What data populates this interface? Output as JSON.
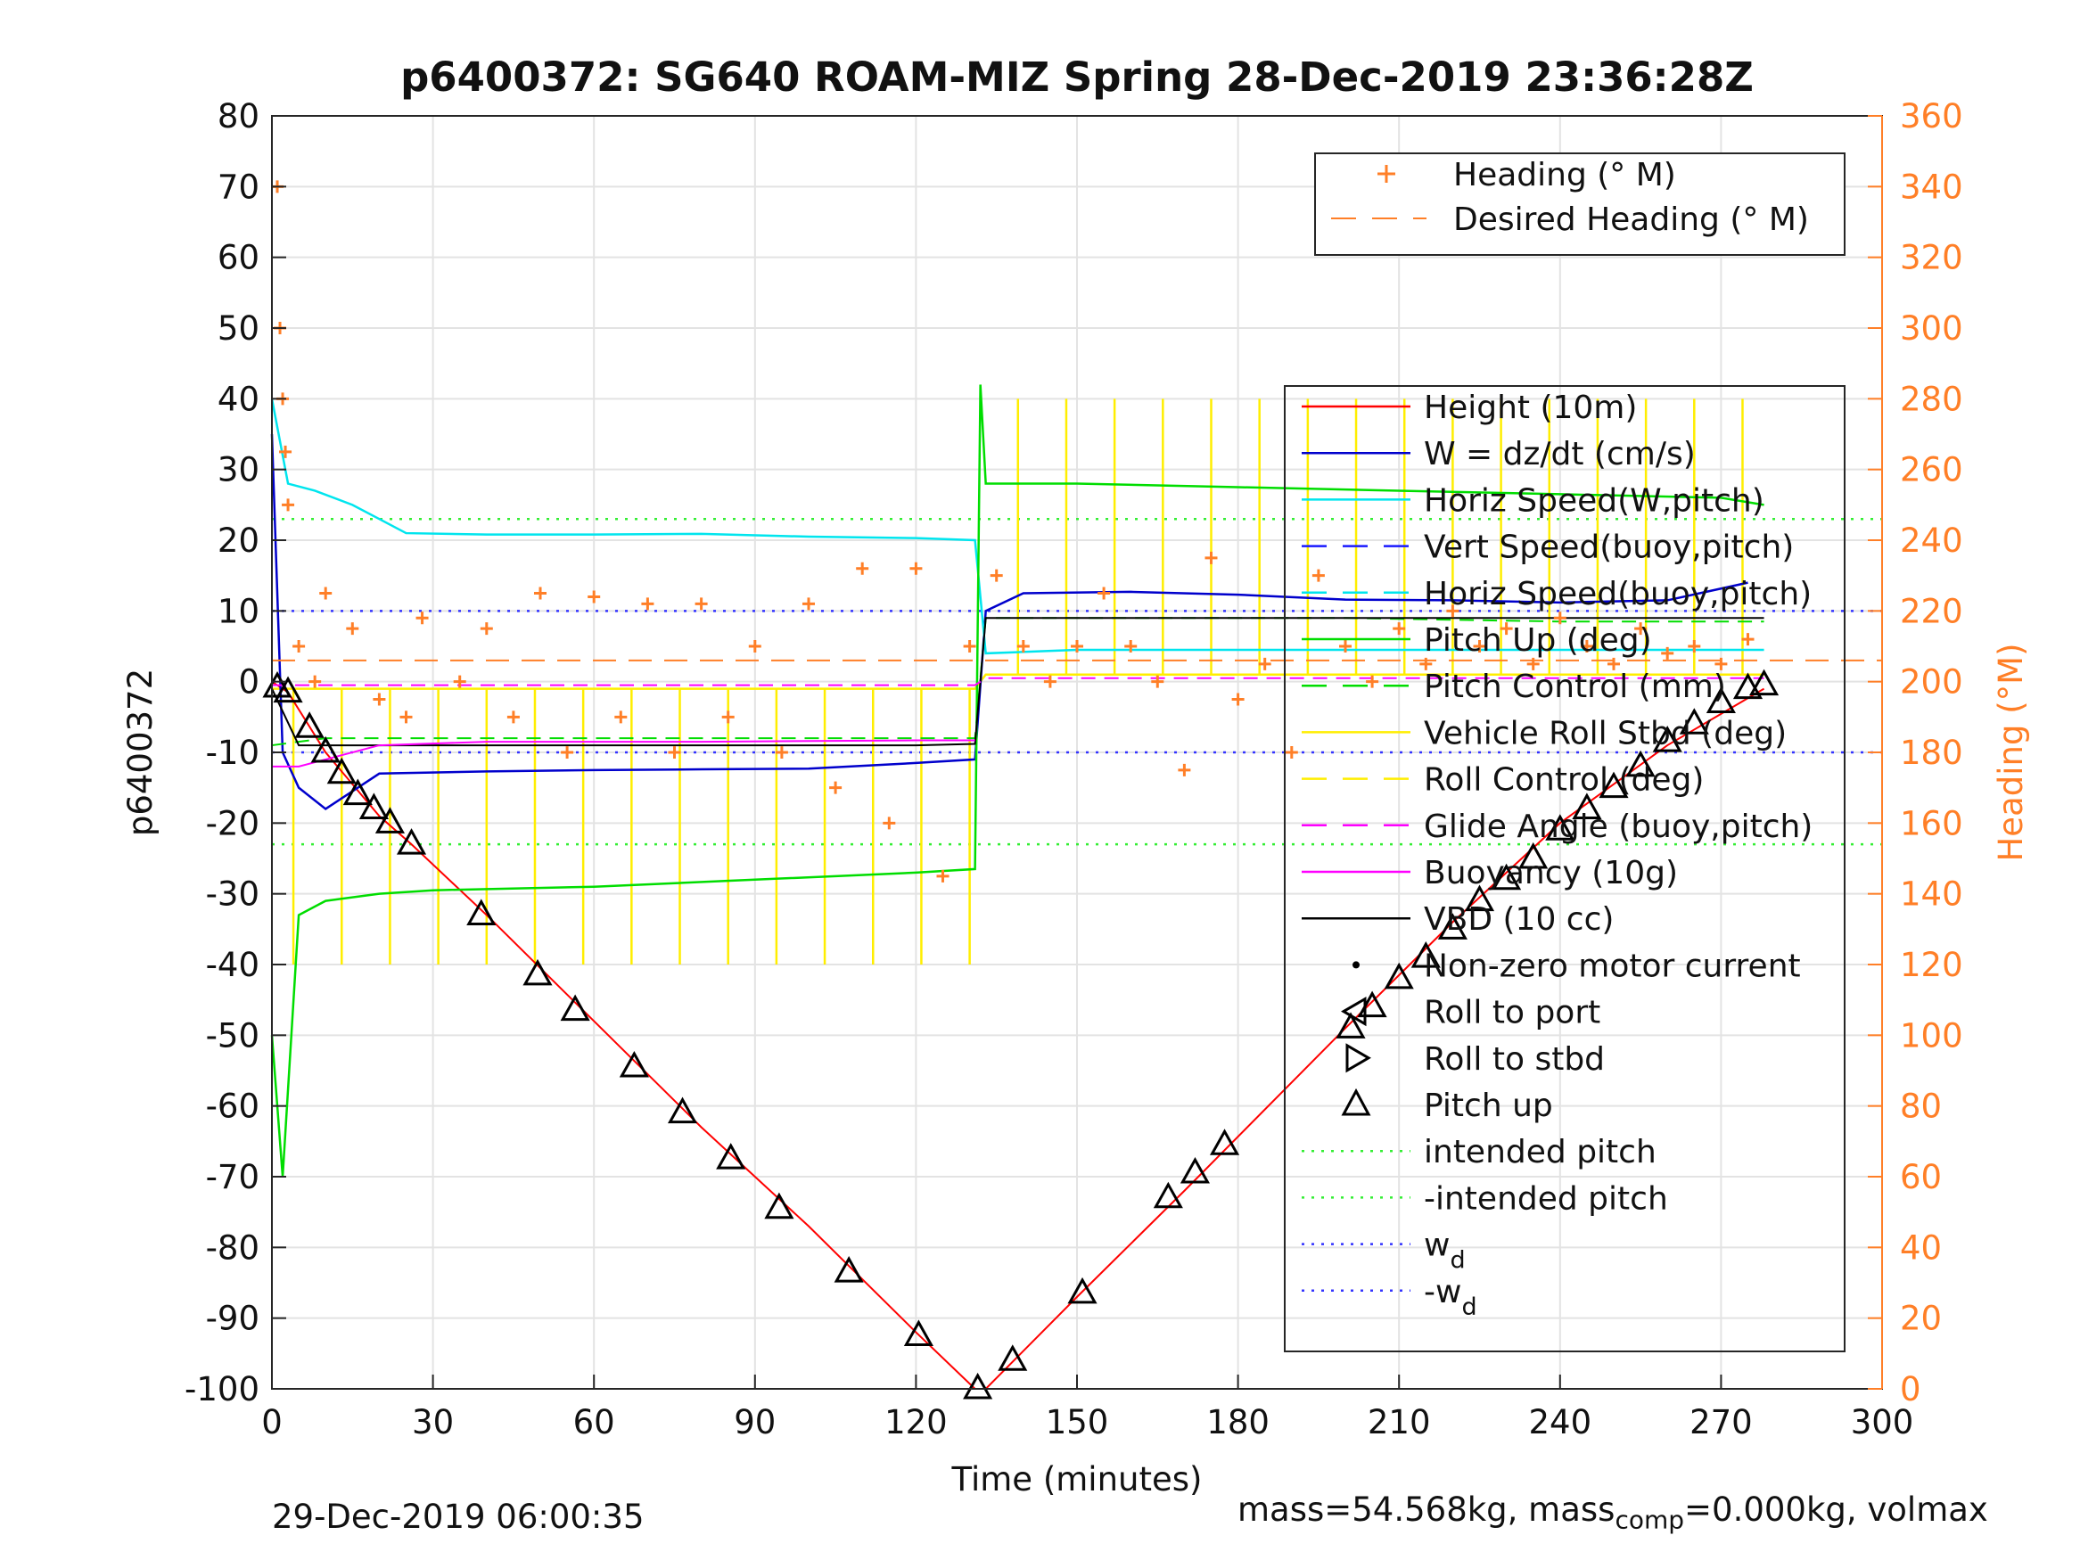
{
  "chart_data": {
    "type": "line",
    "title": "p6400372: SG640 ROAM-MIZ Spring 28-Dec-2019 23:36:28Z",
    "xlabel": "Time (minutes)",
    "ylabel": "p6400372",
    "y2label": "Heading (°M)",
    "xlim": [
      0,
      300
    ],
    "ylim": [
      -100,
      80
    ],
    "y2lim": [
      0,
      360
    ],
    "xticks": [
      0,
      30,
      60,
      90,
      120,
      150,
      180,
      210,
      240,
      270,
      300
    ],
    "yticks": [
      80,
      70,
      60,
      50,
      40,
      30,
      20,
      10,
      0,
      -10,
      -20,
      -30,
      -40,
      -50,
      -60,
      -70,
      -80,
      -90,
      -100
    ],
    "y2ticks": [
      360,
      340,
      320,
      300,
      280,
      260,
      240,
      220,
      200,
      180,
      160,
      140,
      120,
      100,
      80,
      60,
      40,
      20,
      0
    ],
    "grid": true,
    "colors": {
      "height": "#ff0000",
      "w": "#0000cc",
      "horiz_speed": "#00e5ee",
      "vert_speed": "#1a1aff",
      "horiz_speed_buoy": "#00e5ee",
      "pitch": "#00dd00",
      "pitch_control": "#00dd00",
      "roll": "#ffee00",
      "roll_control": "#ffee00",
      "glide": "#ff00ff",
      "buoyancy": "#ff00ff",
      "vbd": "#000000",
      "heading": "#ff7f27",
      "intended": "#33ee33",
      "wd": "#3333ff",
      "right_axis": "#ff7f27"
    },
    "legend_heading": [
      {
        "label": "Heading (° M)",
        "style": "plus",
        "color": "#ff7f27"
      },
      {
        "label": "Desired Heading (° M)",
        "style": "dash",
        "color": "#ff7f27"
      }
    ],
    "legend_main": [
      {
        "label": "Height (10m)",
        "style": "line",
        "color": "#ff0000"
      },
      {
        "label": "W = dz/dt (cm/s)",
        "style": "line",
        "color": "#0000cc"
      },
      {
        "label": "Horiz Speed(W,pitch)",
        "style": "line",
        "color": "#00e5ee"
      },
      {
        "label": "Vert Speed(buoy,pitch)",
        "style": "dash",
        "color": "#1a1aff"
      },
      {
        "label": "Horiz Speed(buoy,pitch)",
        "style": "dash",
        "color": "#00e5ee"
      },
      {
        "label": "Pitch Up (deg)",
        "style": "line",
        "color": "#00dd00"
      },
      {
        "label": "Pitch Control (mm)",
        "style": "dash",
        "color": "#00dd00"
      },
      {
        "label": "Vehicle Roll Stbd (deg)",
        "style": "line",
        "color": "#ffee00"
      },
      {
        "label": "Roll Control (deg)",
        "style": "dash",
        "color": "#ffee00"
      },
      {
        "label": "Glide Angle (buoy,pitch)",
        "style": "dash",
        "color": "#ff00ff"
      },
      {
        "label": "Buoyancy (10g)",
        "style": "line",
        "color": "#ff00ff"
      },
      {
        "label": "VBD (10 cc)",
        "style": "line",
        "color": "#000000"
      },
      {
        "label": "Non-zero motor current",
        "style": "dot",
        "color": "#000000"
      },
      {
        "label": "Roll to port",
        "style": "tri-left",
        "color": "#000000"
      },
      {
        "label": "Roll to stbd",
        "style": "tri-right",
        "color": "#000000"
      },
      {
        "label": "Pitch up",
        "style": "tri-up",
        "color": "#000000"
      },
      {
        "label": "intended pitch",
        "style": "dot-line",
        "color": "#33ee33"
      },
      {
        "label": "-intended pitch",
        "style": "dot-line",
        "color": "#33ee33"
      },
      {
        "label": "w",
        "sub": "d",
        "style": "dot-line",
        "color": "#3333ff"
      },
      {
        "label": "-w",
        "sub": "d",
        "style": "dot-line",
        "color": "#3333ff"
      }
    ],
    "series": [
      {
        "name": "Height (10m)",
        "x": [
          0,
          3,
          10,
          20,
          26,
          40,
          60,
          80,
          100,
          120,
          131,
          133,
          150,
          170,
          200,
          220,
          240,
          260,
          278
        ],
        "y": [
          0,
          -1.5,
          -10,
          -19,
          -23,
          -33,
          -48,
          -63,
          -77,
          -92,
          -100,
          -100,
          -87,
          -72,
          -49,
          -34,
          -20,
          -9,
          -1
        ]
      },
      {
        "name": "W = dz/dt (cm/s)",
        "x": [
          0,
          2,
          5,
          10,
          20,
          40,
          60,
          80,
          100,
          120,
          131,
          133,
          140,
          160,
          180,
          200,
          220,
          240,
          260,
          275
        ],
        "y": [
          35,
          -10,
          -15,
          -18,
          -13,
          -12.7,
          -12.5,
          -12.4,
          -12.3,
          -11.5,
          -11,
          10,
          12.5,
          12.7,
          12.3,
          11.6,
          11.5,
          11.2,
          11.5,
          14
        ]
      },
      {
        "name": "Horiz Speed(W,pitch)",
        "x": [
          0,
          3,
          8,
          15,
          20,
          25,
          40,
          60,
          80,
          100,
          120,
          131,
          133,
          150,
          170,
          200,
          240,
          278
        ],
        "y": [
          40,
          28,
          27,
          25,
          23,
          21,
          20.8,
          20.8,
          20.9,
          20.5,
          20.3,
          20,
          4,
          4.5,
          4.5,
          4.5,
          4.5,
          4.5
        ]
      },
      {
        "name": "Pitch Up (deg)",
        "x": [
          0,
          2,
          5,
          10,
          20,
          30,
          60,
          90,
          120,
          131,
          132,
          133,
          135,
          150,
          180,
          210,
          240,
          270,
          278
        ],
        "y": [
          -50,
          -70,
          -33,
          -31,
          -30,
          -29.5,
          -29,
          -28,
          -27,
          -26.5,
          42,
          28,
          28,
          28,
          27.5,
          27,
          26.5,
          26,
          25
        ]
      },
      {
        "name": "Pitch Control (mm)",
        "x": [
          0,
          10,
          20,
          60,
          100,
          131,
          133,
          160,
          200,
          240,
          278
        ],
        "y": [
          -9,
          -8,
          -8,
          -8,
          -8,
          -8,
          9,
          9,
          9,
          8.5,
          8.5
        ]
      },
      {
        "name": "VBD (10 cc)",
        "x": [
          0,
          5,
          10,
          20,
          40,
          80,
          120,
          131,
          133,
          150,
          200,
          240,
          278
        ],
        "y": [
          -1,
          -9,
          -9,
          -9,
          -9,
          -9,
          -9,
          -8.8,
          9,
          9,
          9,
          9,
          9
        ]
      },
      {
        "name": "Buoyancy (10g)",
        "x": [
          0,
          5,
          10,
          20,
          40,
          80,
          120,
          131
        ],
        "y": [
          -12,
          -12,
          -11,
          -9,
          -8.5,
          -8.5,
          -8.3,
          -8.3
        ]
      },
      {
        "name": "Glide Angle (buoy,pitch)",
        "x": [
          0,
          20,
          60,
          100,
          131,
          133,
          200,
          278
        ],
        "y": [
          -0.5,
          -0.5,
          -0.5,
          -0.5,
          -0.5,
          0.5,
          0.5,
          0.5
        ]
      },
      {
        "name": "Heading (° M)",
        "axis": "right",
        "x": [
          1,
          1.5,
          2,
          2.5,
          3,
          5,
          8,
          10,
          15,
          20,
          25,
          28,
          35,
          40,
          45,
          50,
          55,
          60,
          65,
          70,
          75,
          80,
          85,
          90,
          95,
          100,
          105,
          110,
          115,
          120,
          125,
          130,
          135,
          140,
          145,
          150,
          155,
          160,
          165,
          170,
          175,
          180,
          185,
          190,
          195,
          200,
          205,
          210,
          215,
          220,
          225,
          230,
          235,
          240,
          245,
          250,
          255,
          260,
          265,
          270,
          275
        ],
        "y": [
          340,
          300,
          280,
          265,
          250,
          210,
          200,
          225,
          215,
          195,
          190,
          218,
          200,
          215,
          190,
          225,
          180,
          224,
          190,
          222,
          180,
          222,
          190,
          210,
          180,
          222,
          170,
          232,
          160,
          232,
          145,
          210,
          230,
          210,
          200,
          210,
          225,
          210,
          200,
          175,
          235,
          195,
          205,
          180,
          230,
          210,
          200,
          215,
          205,
          220,
          210,
          215,
          205,
          218,
          210,
          205,
          215,
          208,
          210,
          205,
          212
        ]
      },
      {
        "name": "Desired Heading (° M)",
        "axis": "right",
        "x": [
          0,
          300
        ],
        "y": [
          206,
          206
        ]
      }
    ],
    "markers_pitch_up": {
      "x": [
        1,
        3,
        7,
        10,
        13,
        16,
        19,
        22,
        26,
        39,
        49.5,
        56.5,
        67.5,
        76.5,
        85.5,
        94.5,
        107.5,
        120.5,
        131.5,
        138,
        151,
        167,
        172,
        177.5,
        201,
        205,
        210,
        215,
        220,
        225,
        230,
        235,
        240,
        245,
        250,
        255,
        260,
        265,
        270,
        275,
        278
      ],
      "y": [
        -0.8,
        -1.5,
        -6.5,
        -10,
        -13,
        -16,
        -18,
        -20,
        -23,
        -33,
        -41.5,
        -46.5,
        -54.5,
        -61,
        -67.5,
        -74.5,
        -83.5,
        -92.5,
        -100,
        -96,
        -86.5,
        -73,
        -69.5,
        -65.5,
        -49,
        -46,
        -42,
        -39,
        -35,
        -31,
        -28,
        -25,
        -21,
        -18,
        -15,
        -12,
        -8.5,
        -6,
        -3,
        -1,
        -0.5
      ]
    }
  },
  "footer": {
    "date": "29-Dec-2019 06:00:35",
    "mass_prefix": "mass=54.568kg, mass",
    "mass_sub": "comp",
    "mass_suffix": "=0.000kg, volmax"
  }
}
